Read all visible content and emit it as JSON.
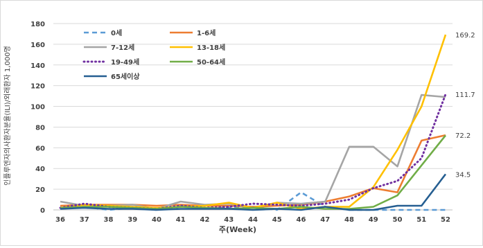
{
  "chart_data": {
    "type": "line",
    "title": "",
    "xlabel": "주(Week)",
    "ylabel": "인플루엔자의사환자분율(ILI)/외래환자 1,000명",
    "categories": [
      "36",
      "37",
      "38",
      "39",
      "40",
      "41",
      "42",
      "43",
      "44",
      "45",
      "46",
      "47",
      "48",
      "49",
      "50",
      "51",
      "52"
    ],
    "ylim": [
      0,
      180
    ],
    "yticks": [
      "0",
      "20",
      "40",
      "60",
      "80",
      "100",
      "120",
      "140",
      "160",
      "180"
    ],
    "grid": true,
    "legend_position": "top-left",
    "series": [
      {
        "name": "0세",
        "color": "#5b9bd5",
        "dash": "dashed",
        "values": [
          2,
          3,
          0,
          2,
          0,
          3,
          2,
          2,
          3,
          0,
          17,
          3,
          0,
          0,
          0,
          0,
          0
        ]
      },
      {
        "name": "1-6세",
        "color": "#ed7d31",
        "dash": "solid",
        "values": [
          4,
          5,
          5,
          5,
          4,
          5,
          4,
          4,
          3,
          4,
          5,
          8,
          13,
          21,
          17,
          67,
          72.2
        ]
      },
      {
        "name": "7-12세",
        "color": "#a5a5a5",
        "dash": "solid",
        "values": [
          8,
          4,
          4,
          5,
          1,
          8,
          5,
          6,
          2,
          7,
          6,
          8,
          61,
          61,
          42,
          111,
          109
        ]
      },
      {
        "name": "13-18세",
        "color": "#ffc000",
        "dash": "solid",
        "values": [
          2,
          5,
          4,
          3,
          2,
          3,
          4,
          7,
          2,
          7,
          1,
          3,
          3,
          22,
          58,
          100,
          169.2
        ]
      },
      {
        "name": "19-49세",
        "color": "#7030a0",
        "dash": "dotted",
        "values": [
          2,
          6,
          3,
          2,
          1,
          4,
          2,
          3,
          6,
          5,
          4,
          6,
          10,
          21,
          28,
          50,
          111.7
        ]
      },
      {
        "name": "50-64세",
        "color": "#70ad47",
        "dash": "solid",
        "values": [
          2,
          3,
          3,
          2,
          1,
          3,
          2,
          1,
          2,
          1,
          3,
          1,
          1,
          3,
          14,
          43,
          72
        ]
      },
      {
        "name": "65세이상",
        "color": "#255e91",
        "dash": "solid",
        "values": [
          1,
          2,
          1,
          1,
          0,
          1,
          1,
          1,
          0,
          1,
          0,
          3,
          0,
          0,
          4,
          4,
          34.5
        ]
      }
    ],
    "end_labels": [
      {
        "text": "169.2",
        "value": 169.2
      },
      {
        "text": "111.7",
        "value": 111.7
      },
      {
        "text": "72.2",
        "value": 72.2
      },
      {
        "text": "34.5",
        "value": 34.5
      }
    ]
  }
}
